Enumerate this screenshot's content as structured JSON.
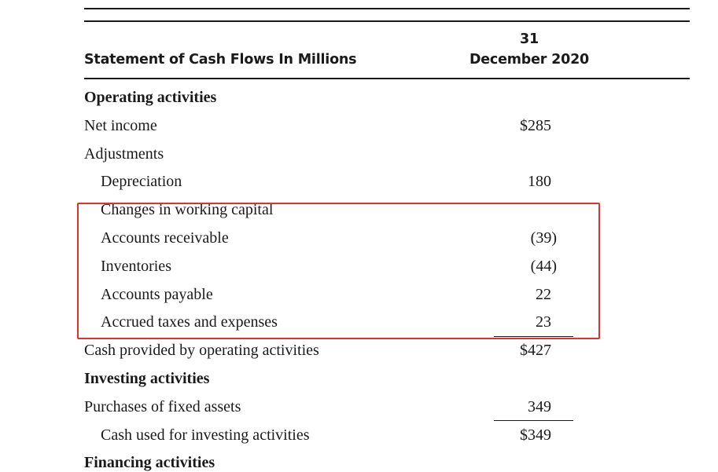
{
  "header": {
    "title": "Statement of Cash Flows In Millions",
    "column_line1": "31",
    "column_line2": "December 2020"
  },
  "rows": [
    {
      "label": "Operating activities",
      "value": ""
    },
    {
      "label": "Net income",
      "value": "$285"
    },
    {
      "label": "Adjustments",
      "value": ""
    },
    {
      "label": "Depreciation",
      "value": "180"
    },
    {
      "label": "Changes in working capital",
      "value": ""
    },
    {
      "label": "Accounts receivable",
      "value": "(39)"
    },
    {
      "label": "Inventories",
      "value": "(44)"
    },
    {
      "label": "Accounts payable",
      "value": "22"
    },
    {
      "label": "Accrued taxes and expenses",
      "value": "23"
    },
    {
      "label": "Cash provided by operating activities",
      "value": "$427"
    },
    {
      "label": "Investing activities",
      "value": ""
    },
    {
      "label": "Purchases of fixed assets",
      "value": "349"
    },
    {
      "label": "Cash used for investing activities",
      "value": "$349"
    },
    {
      "label": "Financing activities",
      "value": ""
    }
  ],
  "colors": {
    "highlight": "#e03131",
    "text": "#1a1a1a"
  }
}
